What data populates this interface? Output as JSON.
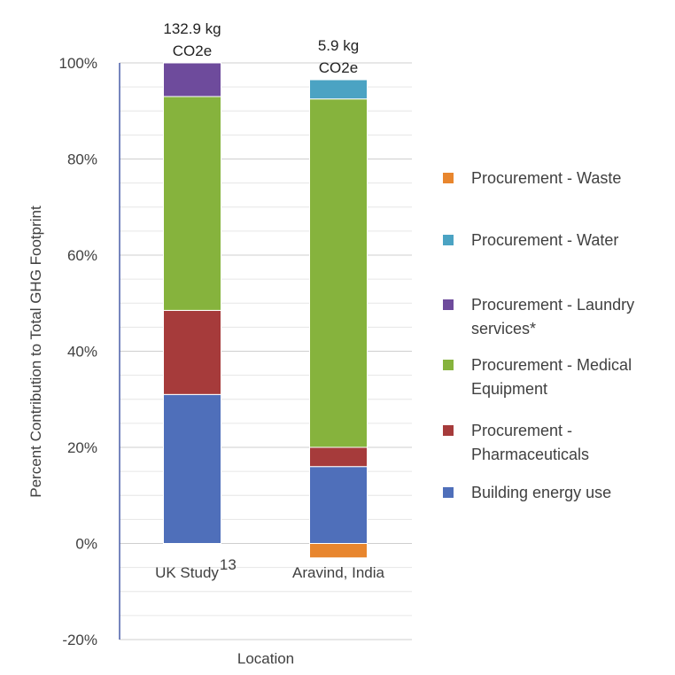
{
  "chart_data": {
    "type": "bar",
    "stacked": true,
    "title": "",
    "xlabel": "Location",
    "ylabel": "Percent Contribution to Total GHG Footprint",
    "ylim": [
      -20,
      100
    ],
    "yticks": [
      -20,
      0,
      20,
      40,
      60,
      80,
      100
    ],
    "ytick_labels": [
      "-20%",
      "0%",
      "20%",
      "40%",
      "60%",
      "80%",
      "100%"
    ],
    "grid": true,
    "legend_position": "right",
    "categories": [
      {
        "name": "UK Study",
        "superscript": "13",
        "total_line1": "132.9 kg",
        "total_line2": "CO2e"
      },
      {
        "name": "Aravind, India",
        "superscript": "",
        "total_line1": "5.9 kg",
        "total_line2": "CO2e"
      }
    ],
    "series": [
      {
        "name": "Building energy use",
        "color": "#4F6FBA",
        "values": [
          31,
          16
        ]
      },
      {
        "name": "Procurement - Pharmaceuticals",
        "color": "#A63B3B",
        "values": [
          17.5,
          4
        ]
      },
      {
        "name": "Procurement - Medical Equipment",
        "color": "#86B33D",
        "values": [
          44.5,
          72.5
        ]
      },
      {
        "name": "Procurement - Laundry services*",
        "color": "#6E4B9C",
        "values": [
          7,
          0
        ]
      },
      {
        "name": "Procurement - Water",
        "color": "#4BA3C3",
        "values": [
          0,
          4
        ]
      },
      {
        "name": "Procurement - Waste",
        "color": "#E8862E",
        "values": [
          0,
          -3
        ]
      }
    ],
    "legend": [
      {
        "lines": [
          "Procurement - Waste"
        ],
        "color": "#E8862E"
      },
      {
        "lines": [
          "Procurement - Water"
        ],
        "color": "#4BA3C3"
      },
      {
        "lines": [
          "Procurement - Laundry",
          "services*"
        ],
        "color": "#6E4B9C"
      },
      {
        "lines": [
          "Procurement - Medical",
          "Equipment"
        ],
        "color": "#86B33D"
      },
      {
        "lines": [
          "Procurement -",
          "Pharmaceuticals"
        ],
        "color": "#A63B3B"
      },
      {
        "lines": [
          "Building energy use"
        ],
        "color": "#4F6FBA"
      }
    ],
    "colors": {
      "axis": "#4A5FA8",
      "grid": "#D9D9D9",
      "text": "#404040"
    }
  }
}
